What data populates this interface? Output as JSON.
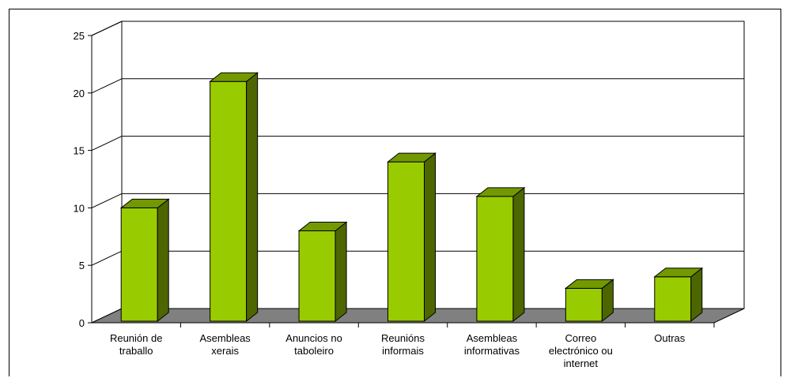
{
  "chart_data": {
    "type": "bar",
    "title": "",
    "xlabel": "",
    "ylabel": "",
    "ylim": [
      0,
      25
    ],
    "yticks": [
      0,
      5,
      10,
      15,
      20,
      25
    ],
    "grid": true,
    "legend": "none",
    "categories": [
      [
        "Reunión de",
        "traballo"
      ],
      [
        "Asembleas",
        "xerais"
      ],
      [
        "Anuncios no",
        "taboleiro"
      ],
      [
        "Reunións",
        "informais"
      ],
      [
        "Asembleas",
        "informativas"
      ],
      [
        "Correo",
        "electrónico ou",
        "internet"
      ],
      [
        "Outras"
      ]
    ],
    "values": [
      10,
      21,
      8,
      14,
      11,
      3,
      4
    ],
    "colors": {
      "bar_front": "#99cc00",
      "bar_side": "#4d6600",
      "bar_top": "#739900",
      "floor": "#808080",
      "wall": "#ffffff",
      "grid": "#000000"
    }
  }
}
